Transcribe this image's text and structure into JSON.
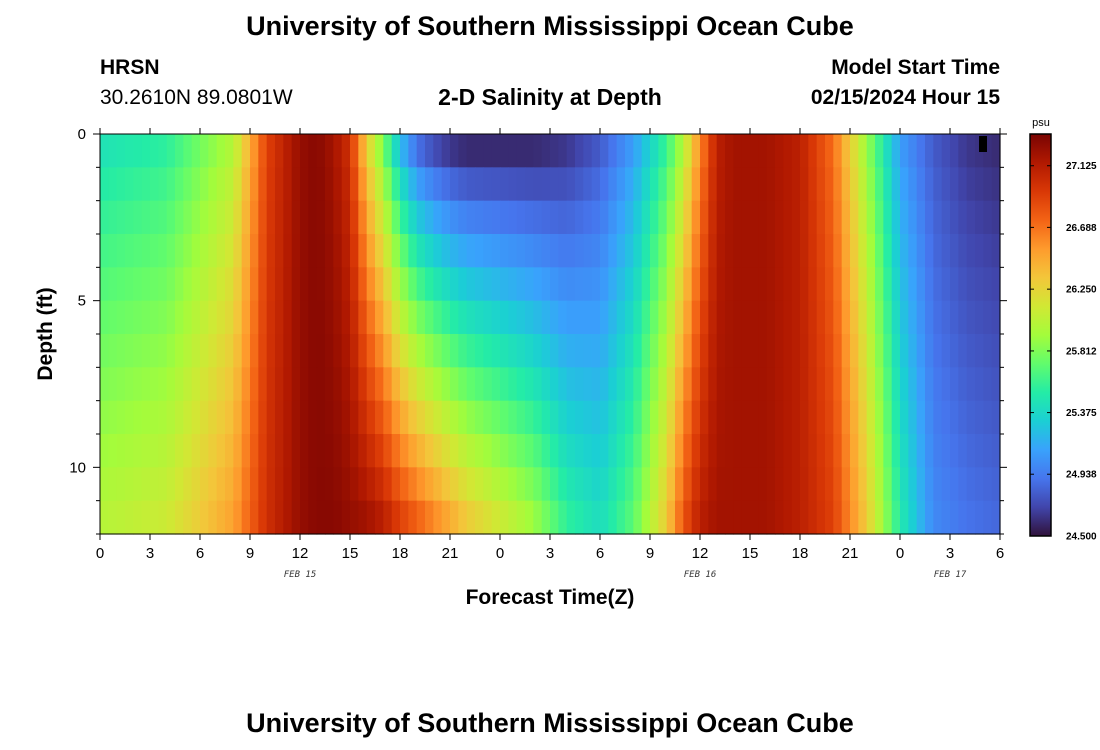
{
  "header": {
    "title": "University of Southern Mississippi Ocean Cube",
    "station_code": "HRSN",
    "station_coords": "30.2610N  89.0801W",
    "subtitle": "2-D Salinity at Depth",
    "model_start_label": "Model Start Time",
    "model_start_value": "02/15/2024 Hour 15"
  },
  "footer": {
    "title": "University of Southern Mississippi Ocean Cube"
  },
  "chart_data": {
    "type": "heatmap",
    "title": "2-D Salinity at Depth",
    "xlabel": "Forecast Time(Z)",
    "ylabel": "Depth (ft)",
    "x_tick_labels": [
      "0",
      "3",
      "6",
      "9",
      "12",
      "15",
      "18",
      "21",
      "0",
      "3",
      "6",
      "9",
      "12",
      "15",
      "18",
      "21",
      "0",
      "3",
      "6"
    ],
    "x_date_labels": [
      {
        "text": "FEB 15",
        "at_tick": 4
      },
      {
        "text": "FEB 16",
        "at_tick": 12
      },
      {
        "text": "FEB 17",
        "at_tick": 17
      }
    ],
    "x_range_hours": [
      0,
      54
    ],
    "y_ticks": [
      0,
      5,
      10
    ],
    "y_range_ft": [
      0,
      12
    ],
    "colorbar": {
      "unit": "psu",
      "min": 24.5,
      "max": 27.35,
      "tick_values": [
        27.125,
        26.688,
        26.25,
        25.812,
        25.375,
        24.938,
        24.5
      ],
      "tick_labels": [
        "27.125",
        "26.688",
        "26.250",
        "25.812",
        "25.375",
        "24.938",
        "24.500"
      ],
      "colors": [
        "#30123b",
        "#4145ab",
        "#4675ed",
        "#39a2fc",
        "#1bcfd4",
        "#24eca6",
        "#61fc6c",
        "#a4fc3b",
        "#d1e834",
        "#f3c63a",
        "#fe9b2d",
        "#f36315",
        "#d93806",
        "#b11901",
        "#7a0402"
      ]
    },
    "depth_rows_ft": [
      0.5,
      1.5,
      2.5,
      3.5,
      4.5,
      5.5,
      6.5,
      7.5,
      8.5,
      9.5,
      10.5,
      11.5
    ],
    "time_keys": {
      "hours": [
        0,
        4,
        8,
        10,
        12,
        13,
        14,
        15,
        16,
        17,
        18,
        19,
        20,
        21,
        22,
        24,
        26,
        28,
        30,
        32,
        34,
        35,
        36,
        37,
        38,
        40,
        42,
        44,
        46,
        48,
        50,
        52,
        54
      ],
      "surface_psu": [
        25.45,
        25.55,
        26.0,
        26.9,
        27.25,
        27.3,
        27.2,
        27.0,
        26.3,
        25.8,
        25.25,
        24.9,
        24.75,
        24.65,
        24.6,
        24.6,
        24.6,
        24.65,
        24.8,
        25.1,
        25.6,
        26.0,
        26.6,
        27.1,
        27.2,
        27.2,
        27.1,
        26.7,
        25.9,
        25.1,
        24.8,
        24.65,
        24.6
      ],
      "bottom_psu": [
        26.0,
        26.1,
        26.5,
        27.0,
        27.25,
        27.3,
        27.3,
        27.25,
        27.2,
        27.1,
        26.9,
        26.75,
        26.6,
        26.45,
        26.3,
        26.1,
        25.9,
        25.55,
        25.4,
        25.7,
        26.3,
        26.8,
        27.1,
        27.2,
        27.2,
        27.2,
        27.1,
        26.9,
        26.3,
        25.5,
        25.0,
        24.9,
        24.85
      ]
    }
  }
}
